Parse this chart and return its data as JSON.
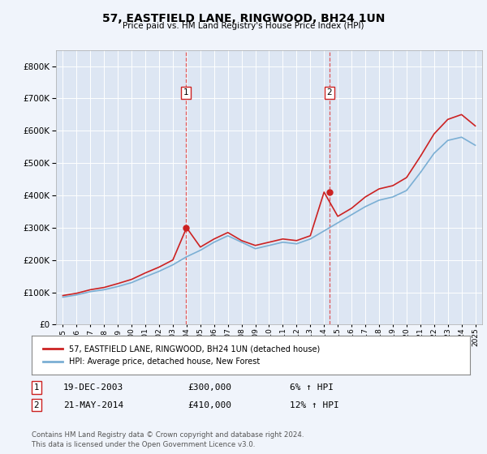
{
  "title": "57, EASTFIELD LANE, RINGWOOD, BH24 1UN",
  "subtitle": "Price paid vs. HM Land Registry's House Price Index (HPI)",
  "background_color": "#f0f4fb",
  "plot_background": "#dde6f3",
  "grid_color": "#ffffff",
  "sale1_date": "19-DEC-2003",
  "sale1_price": 300000,
  "sale1_hpi": "6%",
  "sale2_date": "21-MAY-2014",
  "sale2_price": 410000,
  "sale2_hpi": "12%",
  "legend_label_red": "57, EASTFIELD LANE, RINGWOOD, BH24 1UN (detached house)",
  "legend_label_blue": "HPI: Average price, detached house, New Forest",
  "footer": "Contains HM Land Registry data © Crown copyright and database right 2024.\nThis data is licensed under the Open Government Licence v3.0.",
  "years": [
    1995,
    1996,
    1997,
    1998,
    1999,
    2000,
    2001,
    2002,
    2003,
    2004,
    2005,
    2006,
    2007,
    2008,
    2009,
    2010,
    2011,
    2012,
    2013,
    2014,
    2015,
    2016,
    2017,
    2018,
    2019,
    2020,
    2021,
    2022,
    2023,
    2024,
    2025
  ],
  "hpi_values": [
    85000,
    92000,
    102000,
    108000,
    118000,
    130000,
    148000,
    165000,
    185000,
    210000,
    230000,
    255000,
    275000,
    255000,
    235000,
    245000,
    255000,
    250000,
    265000,
    290000,
    315000,
    340000,
    365000,
    385000,
    395000,
    415000,
    470000,
    530000,
    570000,
    580000,
    555000
  ],
  "red_values": [
    90000,
    97000,
    108000,
    115000,
    127000,
    140000,
    160000,
    178000,
    200000,
    300000,
    240000,
    265000,
    285000,
    260000,
    245000,
    255000,
    265000,
    260000,
    275000,
    410000,
    335000,
    360000,
    395000,
    420000,
    430000,
    455000,
    520000,
    590000,
    635000,
    650000,
    615000
  ],
  "sale1_x": 2003.96,
  "sale2_x": 2014.38,
  "ylim_min": 0,
  "ylim_max": 850000,
  "yticks": [
    0,
    100000,
    200000,
    300000,
    400000,
    500000,
    600000,
    700000,
    800000
  ]
}
